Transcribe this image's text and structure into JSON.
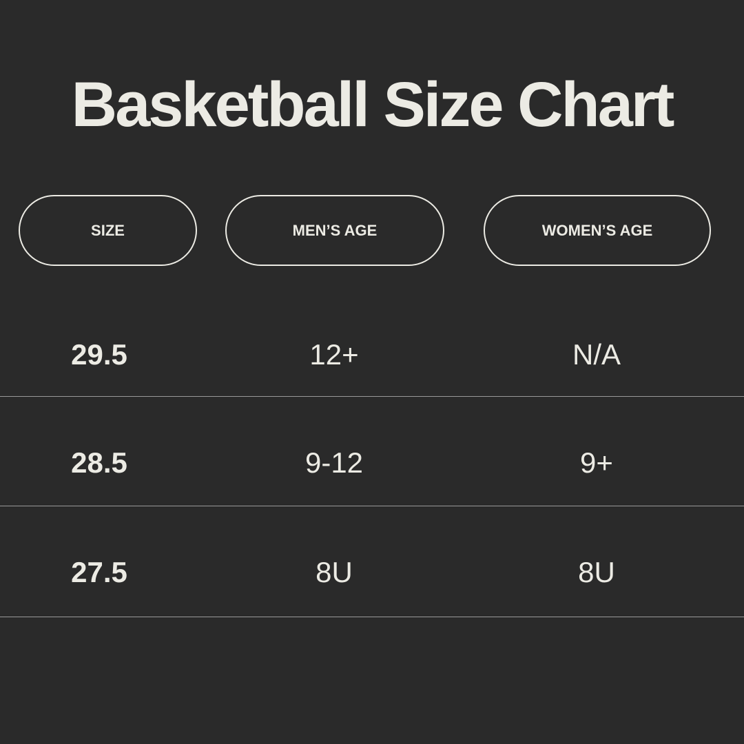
{
  "title": "Basketball Size Chart",
  "headers": [
    "SIZE",
    "MEN’S AGE",
    "WOMEN’S AGE"
  ],
  "rows": [
    [
      "29.5",
      "12+",
      "N/A"
    ],
    [
      "28.5",
      "9-12",
      "9+"
    ],
    [
      "27.5",
      "8U",
      "8U"
    ]
  ],
  "colors": {
    "background": "#2a2a2a",
    "text": "#ecebe4"
  }
}
